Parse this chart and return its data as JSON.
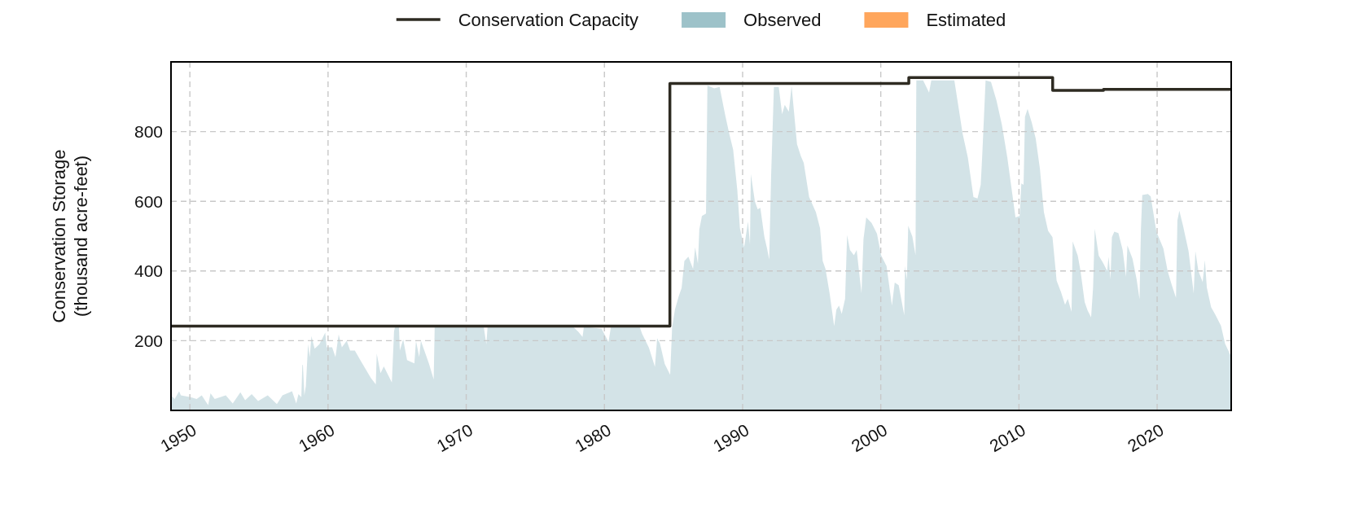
{
  "chart_data": {
    "type": "area",
    "ylabel": "Conservation Storage\n(thousand acre-feet)",
    "xlim": [
      "1948-08-20",
      "2025-05-12"
    ],
    "ylim": [
      0,
      1000
    ],
    "xticks": [
      "1950",
      "1960",
      "1970",
      "1980",
      "1990",
      "2000",
      "2010",
      "2020"
    ],
    "yticks": [
      200,
      400,
      600,
      800
    ],
    "grid": true,
    "legend": "top",
    "series": [
      {
        "name": "Conservation Capacity",
        "type": "step",
        "color": "#2e2b22",
        "x": [
          "1948-08-20",
          "1984-09-27",
          "2002-01-11",
          "2012-06-10",
          "2016-02-14",
          "2025-05-12"
        ],
        "values": [
          242,
          938,
          955,
          918,
          921,
          921
        ]
      },
      {
        "name": "Observed",
        "color": "#9dc2c9",
        "x": [
          "1948-08-20",
          "1948-11-25",
          "1949-03-23",
          "1949-05-07",
          "1950-01-19",
          "1950-07-01",
          "1950-11-10",
          "1951-04-29",
          "1951-07-01",
          "1951-10-19",
          "1952-08-07",
          "1953-02-07",
          "1953-08-28",
          "1954-01-01",
          "1954-06-23",
          "1954-12-09",
          "1955-08-21",
          "1956-04-19",
          "1956-09-13",
          "1957-05-25",
          "1957-09-13",
          "1957-11-10",
          "1958-01-25",
          "1958-02-20",
          "1958-03-08",
          "1958-04-15",
          "1958-05-25",
          "1958-07-22",
          "1958-09-05",
          "1958-10-19",
          "1959-01-11",
          "1959-05-17",
          "1959-10-19",
          "1959-11-25",
          "1960-04-19",
          "1960-07-15",
          "1960-10-08",
          "1961-01-01",
          "1961-05-10",
          "1961-08-07",
          "1961-12-09",
          "1962-05-25",
          "1963-02-07",
          "1963-06-16",
          "1963-07-11",
          "1963-10-19",
          "1964-01-15",
          "1964-08-14",
          "1964-10-11",
          "1964-11-07",
          "1965-02-17",
          "1965-03-13",
          "1965-06-09",
          "1965-09-20",
          "1966-04-01",
          "1966-05-14",
          "1966-08-07",
          "1966-09-20",
          "1967-04-19",
          "1967-08-25",
          "1967-09-20",
          "1971-04-08",
          "1971-06-16",
          "1971-07-19",
          "1977-09-23",
          "1978-02-07",
          "1978-06-02",
          "1978-07-08",
          "1979-10-19",
          "1980-04-19",
          "1980-06-23",
          "1982-07-19",
          "1982-09-27",
          "1983-03-23",
          "1983-08-28",
          "1983-10-26",
          "1984-01-08",
          "1984-05-14",
          "1984-10-04",
          "1984-11-25",
          "1985-02-07",
          "1985-05-21",
          "1985-08-03",
          "1985-10-15",
          "1986-01-29",
          "1986-06-02",
          "1986-07-26",
          "1986-10-08",
          "1986-11-14",
          "1987-01-22",
          "1987-05-10",
          "1987-06-16",
          "1987-12-13",
          "1988-05-03",
          "1988-09-23",
          "1989-01-11",
          "1989-04-26",
          "1989-08-14",
          "1989-10-22",
          "1990-02-10",
          "1990-05-25",
          "1990-07-15",
          "1990-08-07",
          "1990-11-21",
          "1991-02-03",
          "1991-04-15",
          "1991-07-29",
          "1991-10-11",
          "1991-12-05",
          "1992-01-26",
          "1992-04-08",
          "1992-08-14",
          "1992-11-10",
          "1993-01-19",
          "1993-05-07",
          "1993-07-19",
          "1993-12-09",
          "1994-03-23",
          "1994-06-05",
          "1994-10-26",
          "1995-04-22",
          "1995-08-10",
          "1995-10-19",
          "1996-01-01",
          "1996-04-19",
          "1996-08-17",
          "1996-10-15",
          "1996-12-23",
          "1997-03-05",
          "1997-06-02",
          "1997-07-26",
          "1997-10-08",
          "1998-01-22",
          "1998-04-04",
          "1998-08-10",
          "1998-10-01",
          "1998-12-13",
          "1999-05-03",
          "1999-09-23",
          "2000-01-11",
          "2000-06-02",
          "2000-10-22",
          "2001-01-04",
          "2001-04-19",
          "2001-09-13",
          "2001-10-04",
          "2001-11-21",
          "2001-12-27",
          "2002-04-15",
          "2002-07-08",
          "2002-07-29",
          "2003-01-26",
          "2003-07-01",
          "2003-08-28",
          "2005-04-29",
          "2005-07-11",
          "2005-12-02",
          "2006-04-22",
          "2006-09-16",
          "2007-01-01",
          "2007-03-27",
          "2007-05-07",
          "2007-08-03",
          "2007-12-23",
          "2008-05-17",
          "2008-10-08",
          "2009-02-28",
          "2009-10-01",
          "2010-01-19",
          "2010-03-05",
          "2010-05-03",
          "2010-06-09",
          "2010-08-17",
          "2010-12-05",
          "2011-03-20",
          "2011-07-08",
          "2011-10-22",
          "2012-02-10",
          "2012-06-05",
          "2012-07-11",
          "2012-09-23",
          "2013-01-15",
          "2013-05-03",
          "2013-07-15",
          "2013-10-22",
          "2013-11-21",
          "2014-04-04",
          "2014-06-16",
          "2014-10-04",
          "2014-12-20",
          "2015-03-23",
          "2015-05-14",
          "2015-06-27",
          "2015-10-11",
          "2016-01-29",
          "2016-05-21",
          "2016-06-27",
          "2016-08-17",
          "2016-09-23",
          "2016-11-25",
          "2017-03-13",
          "2017-07-04",
          "2017-10-01",
          "2017-11-07",
          "2018-03-20",
          "2018-07-08",
          "2018-09-23",
          "2018-10-29",
          "2018-12-05",
          "2019-05-03",
          "2019-07-15",
          "2019-12-13",
          "2020-06-13",
          "2020-10-04",
          "2021-01-22",
          "2021-05-14",
          "2021-06-20",
          "2021-08-10",
          "2021-11-17",
          "2022-04-11",
          "2022-08-25",
          "2022-10-08",
          "2022-12-27",
          "2023-04-19",
          "2023-06-16",
          "2023-08-07",
          "2023-11-28",
          "2024-03-16",
          "2024-08-14",
          "2024-12-02",
          "2025-05-12"
        ],
        "values": [
          43,
          33,
          55,
          43,
          38,
          33,
          43,
          15,
          49,
          33,
          43,
          20,
          52,
          29,
          47,
          27,
          43,
          18,
          43,
          55,
          20,
          47,
          38,
          130,
          130,
          43,
          70,
          190,
          153,
          213,
          177,
          190,
          223,
          181,
          181,
          153,
          218,
          181,
          200,
          172,
          172,
          140,
          93,
          75,
          163,
          107,
          126,
          80,
          227,
          240,
          240,
          172,
          204,
          144,
          135,
          200,
          153,
          200,
          135,
          89,
          240,
          240,
          190,
          240,
          240,
          226,
          211,
          240,
          234,
          196,
          240,
          240,
          219,
          180,
          125,
          207,
          192,
          133,
          102,
          238,
          289,
          328,
          351,
          429,
          441,
          406,
          468,
          421,
          519,
          558,
          565,
          932,
          924,
          928,
          850,
          795,
          748,
          632,
          523,
          468,
          542,
          476,
          678,
          600,
          577,
          581,
          499,
          464,
          433,
          678,
          928,
          928,
          850,
          877,
          857,
          931,
          764,
          729,
          710,
          612,
          569,
          523,
          429,
          406,
          336,
          242,
          289,
          301,
          277,
          320,
          503,
          460,
          445,
          460,
          336,
          491,
          554,
          538,
          507,
          445,
          414,
          301,
          367,
          359,
          273,
          414,
          375,
          530,
          499,
          445,
          947,
          947,
          912,
          947,
          947,
          896,
          795,
          725,
          612,
          608,
          647,
          733,
          947,
          943,
          889,
          819,
          725,
          554,
          558,
          651,
          647,
          842,
          865,
          826,
          780,
          694,
          569,
          515,
          497,
          456,
          372,
          340,
          303,
          320,
          283,
          485,
          444,
          400,
          311,
          287,
          267,
          352,
          521,
          444,
          424,
          400,
          441,
          376,
          497,
          513,
          509,
          460,
          384,
          473,
          436,
          376,
          319,
          517,
          618,
          621,
          614,
          513,
          465,
          400,
          360,
          323,
          545,
          573,
          529,
          457,
          336,
          457,
          400,
          368,
          431,
          352,
          296,
          275,
          243,
          191,
          154
        ]
      },
      {
        "name": "Estimated",
        "color": "#ffa65c"
      }
    ]
  }
}
